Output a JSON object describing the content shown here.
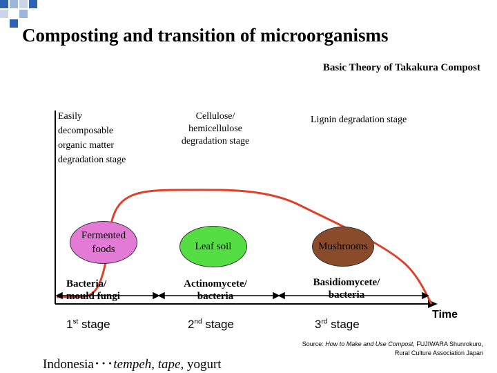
{
  "title": "Composting and transition of microorganisms",
  "subtitle": "Basic Theory of Takakura Compost",
  "stages": [
    {
      "description": [
        "Easily",
        "decomposable",
        "organic matter",
        "degradation stage"
      ],
      "product": [
        "Fermented",
        "foods"
      ],
      "organisms": [
        "Bacteria/",
        "mould fungi"
      ],
      "ordinal": "1",
      "suffix": "st",
      "word": "stage"
    },
    {
      "description": [
        "Cellulose/",
        "hemicellulose",
        "degradation stage"
      ],
      "product": [
        "Leaf soil"
      ],
      "organisms": [
        "Actinomycete/",
        "bacteria"
      ],
      "ordinal": "2",
      "suffix": "nd",
      "word": "stage"
    },
    {
      "description": [
        "Lignin degradation stage"
      ],
      "product": [
        "Mushrooms"
      ],
      "organisms": [
        "Basidiomycete/",
        "bacteria"
      ],
      "ordinal": "3",
      "suffix": "rd",
      "word": "stage"
    }
  ],
  "axis": {
    "x_label": "Time"
  },
  "colors": {
    "curve": "#e0402a",
    "fermented": "#e37ad6",
    "leaf_soil": "#55dd44",
    "mushrooms": "#8a4b2a",
    "decoration": "#2e62b5"
  },
  "source": {
    "prefix": "Source: ",
    "book": "How to Make and Use Compost",
    "suffix": ", FUJIWARA Shunrokuro,",
    "publisher": "Rural Culture Association Japan"
  },
  "example": {
    "country": "Indonesia",
    "separator": "･･･",
    "item1": "tempeh",
    "comma1": ", ",
    "item2": "tape",
    "rest": ", yogurt"
  }
}
